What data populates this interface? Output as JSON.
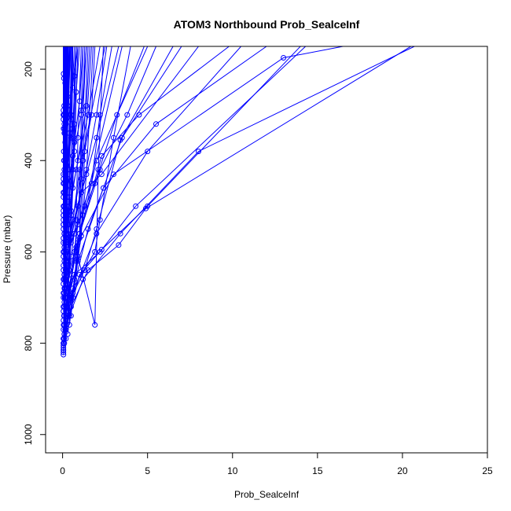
{
  "chart_data": {
    "type": "line",
    "title": "ATOM3 Northbound Prob_SealceInf",
    "xlabel": "Prob_SealceInf",
    "ylabel": "Pressure (mbar)",
    "xlim": [
      -1,
      25
    ],
    "ylim": [
      1040,
      150
    ],
    "y_reversed": true,
    "xticks": [
      0,
      5,
      10,
      15,
      20,
      25
    ],
    "yticks": [
      200,
      400,
      600,
      800,
      1000
    ],
    "color": "#0000ff",
    "grid": false,
    "series": [
      {
        "x": [
          0.05,
          0.1,
          0.3,
          1.3,
          3.5
        ],
        "y": [
          820,
          790,
          700,
          500,
          150
        ]
      },
      {
        "x": [
          0.05,
          0.1,
          0.2,
          0.8,
          2.0,
          5.0
        ],
        "y": [
          815,
          780,
          720,
          600,
          400,
          150
        ]
      },
      {
        "x": [
          0.05,
          0.15,
          0.5,
          1.5,
          3.5,
          7.0
        ],
        "y": [
          810,
          770,
          700,
          550,
          350,
          150
        ]
      },
      {
        "x": [
          0.05,
          0.2,
          0.6,
          2.0,
          5.0,
          10.5
        ],
        "y": [
          805,
          760,
          690,
          560,
          380,
          150
        ]
      },
      {
        "x": [
          0.05,
          0.1,
          0.2,
          0.5,
          1.0,
          2.5
        ],
        "y": [
          800,
          760,
          690,
          560,
          420,
          150
        ]
      },
      {
        "x": [
          0.05,
          0.1,
          0.3,
          0.9,
          3.0,
          13.0,
          16.5
        ],
        "y": [
          825,
          760,
          690,
          580,
          430,
          175,
          150
        ]
      },
      {
        "x": [
          0.1,
          0.3,
          1.0,
          2.3,
          5.0,
          14.0
        ],
        "y": [
          800,
          750,
          650,
          595,
          500,
          150
        ]
      },
      {
        "x": [
          0.05,
          0.4,
          1.2,
          3.4,
          8.0,
          20.7
        ],
        "y": [
          790,
          740,
          660,
          560,
          380,
          150
        ]
      },
      {
        "x": [
          0.1,
          0.5,
          1.5,
          3.3,
          4.9,
          20.5
        ],
        "y": [
          780,
          720,
          640,
          585,
          505,
          150
        ]
      },
      {
        "x": [
          0.05,
          0.2,
          0.7,
          2.2,
          4.3,
          14.3
        ],
        "y": [
          770,
          720,
          650,
          600,
          500,
          150
        ]
      },
      {
        "x": [
          0.1,
          0.3,
          0.9,
          2.4,
          5.5,
          12.0
        ],
        "y": [
          760,
          700,
          620,
          460,
          320,
          150
        ]
      },
      {
        "x": [
          0.05,
          0.5,
          1.3,
          2.0,
          3.4,
          6.5
        ],
        "y": [
          750,
          700,
          640,
          550,
          355,
          150
        ]
      },
      {
        "x": [
          0.1,
          0.6,
          1.9,
          2.2,
          3.0,
          4.0
        ],
        "y": [
          740,
          680,
          600,
          530,
          350,
          150
        ]
      },
      {
        "x": [
          0.05,
          0.3,
          0.8,
          2.3,
          4.5,
          9.8
        ],
        "y": [
          730,
          670,
          590,
          390,
          300,
          150
        ]
      },
      {
        "x": [
          0.05,
          0.2,
          0.5,
          1.1,
          2.3,
          8.0
        ],
        "y": [
          720,
          660,
          570,
          470,
          430,
          150
        ]
      },
      {
        "x": [
          0.1,
          0.4,
          1.0,
          2.2,
          3.8,
          5.5
        ],
        "y": [
          710,
          640,
          560,
          420,
          300,
          150
        ]
      },
      {
        "x": [
          0.05,
          0.2,
          0.7,
          1.9,
          3.2,
          4.8
        ],
        "y": [
          700,
          620,
          560,
          450,
          300,
          150
        ]
      },
      {
        "x": [
          0.05,
          0.3,
          0.9,
          2.0,
          3.3
        ],
        "y": [
          690,
          600,
          500,
          350,
          150
        ]
      },
      {
        "x": [
          0.1,
          0.5,
          1.7,
          2.2,
          2.9
        ],
        "y": [
          680,
          580,
          450,
          300,
          150
        ]
      },
      {
        "x": [
          0.05,
          0.4,
          1.4,
          2.0,
          2.6
        ],
        "y": [
          670,
          570,
          420,
          300,
          150
        ]
      },
      {
        "x": [
          0.05,
          0.2,
          0.8,
          1.5,
          2.2
        ],
        "y": [
          660,
          560,
          420,
          300,
          150
        ]
      },
      {
        "x": [
          0.1,
          0.6,
          1.2,
          1.7,
          1.9
        ],
        "y": [
          650,
          530,
          400,
          300,
          150
        ]
      },
      {
        "x": [
          0.05,
          0.3,
          0.9,
          1.4,
          1.6
        ],
        "y": [
          640,
          520,
          400,
          280,
          150
        ]
      },
      {
        "x": [
          0.05,
          0.1,
          0.6,
          1.1,
          1.4
        ],
        "y": [
          630,
          500,
          390,
          300,
          150
        ]
      },
      {
        "x": [
          0.1,
          0.4,
          0.7,
          1.0,
          1.2
        ],
        "y": [
          620,
          480,
          360,
          270,
          150
        ]
      },
      {
        "x": [
          0.05,
          0.1,
          0.5,
          0.8,
          1.0
        ],
        "y": [
          610,
          470,
          350,
          250,
          150
        ]
      },
      {
        "x": [
          0.05,
          0.2,
          0.4,
          0.6,
          0.8
        ],
        "y": [
          600,
          460,
          340,
          240,
          150
        ]
      },
      {
        "x": [
          0.1,
          0.3,
          0.5,
          0.7
        ],
        "y": [
          590,
          420,
          300,
          150
        ]
      },
      {
        "x": [
          0.05,
          0.1,
          0.3,
          0.5
        ],
        "y": [
          580,
          400,
          280,
          150
        ]
      },
      {
        "x": [
          0.05,
          0.2,
          0.3,
          0.45
        ],
        "y": [
          570,
          380,
          260,
          150
        ]
      },
      {
        "x": [
          0.1,
          0.15,
          0.25,
          0.35
        ],
        "y": [
          560,
          360,
          250,
          150
        ]
      },
      {
        "x": [
          0.05,
          0.1,
          0.2,
          0.3
        ],
        "y": [
          550,
          340,
          240,
          150
        ]
      },
      {
        "x": [
          0.05,
          0.1,
          0.15,
          0.2
        ],
        "y": [
          540,
          320,
          230,
          150
        ]
      },
      {
        "x": [
          0.05,
          0.06,
          0.08,
          0.1
        ],
        "y": [
          530,
          300,
          220,
          150
        ]
      },
      {
        "x": [
          0.05,
          0.05,
          0.06,
          0.07
        ],
        "y": [
          520,
          310,
          210,
          150
        ]
      },
      {
        "x": [
          0.05,
          0.05,
          0.05
        ],
        "y": [
          510,
          300,
          150
        ]
      },
      {
        "x": [
          0.2,
          0.4,
          0.7,
          1.1,
          1.3
        ],
        "y": [
          790,
          700,
          600,
          440,
          150
        ]
      },
      {
        "x": [
          0.3,
          0.6,
          1.0,
          1.2,
          1.5
        ],
        "y": [
          780,
          690,
          570,
          400,
          150
        ]
      },
      {
        "x": [
          0.2,
          0.7,
          1.1,
          1.3,
          1.7
        ],
        "y": [
          770,
          660,
          565,
          380,
          150
        ]
      },
      {
        "x": [
          0.4,
          0.9,
          1.9,
          2.1,
          2.4
        ],
        "y": [
          760,
          610,
          760,
          420,
          150
        ]
      },
      {
        "x": [
          0.5,
          0.8,
          1.0,
          1.1,
          1.2
        ],
        "y": [
          740,
          620,
          560,
          290,
          150
        ]
      },
      {
        "x": [
          0.3,
          0.7,
          0.9,
          1.2,
          1.4
        ],
        "y": [
          730,
          600,
          540,
          290,
          150
        ]
      },
      {
        "x": [
          0.2,
          0.5,
          0.8,
          0.9,
          1.1
        ],
        "y": [
          720,
          610,
          530,
          350,
          150
        ]
      },
      {
        "x": [
          0.6,
          0.9,
          1.2,
          1.4,
          1.8
        ],
        "y": [
          700,
          620,
          520,
          430,
          150
        ]
      },
      {
        "x": [
          0.1,
          0.4,
          0.6,
          0.7,
          0.9
        ],
        "y": [
          690,
          540,
          420,
          215,
          150
        ]
      },
      {
        "x": [
          0.3,
          0.5,
          0.7,
          0.9
        ],
        "y": [
          680,
          510,
          380,
          150
        ]
      },
      {
        "x": [
          0.2,
          0.4,
          0.6,
          0.8
        ],
        "y": [
          670,
          500,
          330,
          150
        ]
      },
      {
        "x": [
          0.1,
          0.3,
          0.4,
          0.6
        ],
        "y": [
          660,
          480,
          300,
          150
        ]
      },
      {
        "x": [
          0.4,
          0.6,
          0.7,
          0.8
        ],
        "y": [
          650,
          460,
          320,
          150
        ]
      },
      {
        "x": [
          0.2,
          0.3,
          0.5,
          0.6
        ],
        "y": [
          640,
          440,
          310,
          150
        ]
      },
      {
        "x": [
          0.3,
          0.4,
          0.5,
          0.55
        ],
        "y": [
          620,
          420,
          300,
          150
        ]
      },
      {
        "x": [
          0.1,
          0.2,
          0.35,
          0.45
        ],
        "y": [
          600,
          400,
          290,
          150
        ]
      },
      {
        "x": [
          0.15,
          0.25,
          0.3,
          0.4
        ],
        "y": [
          580,
          410,
          305,
          150
        ]
      },
      {
        "x": [
          0.1,
          0.15,
          0.2,
          0.3
        ],
        "y": [
          560,
          430,
          320,
          150
        ]
      },
      {
        "x": [
          0.05,
          0.1,
          0.15,
          0.25
        ],
        "y": [
          540,
          450,
          340,
          150
        ]
      },
      {
        "x": [
          0.05,
          0.1,
          0.12,
          0.18
        ],
        "y": [
          520,
          420,
          330,
          150
        ]
      },
      {
        "x": [
          0.05,
          0.08,
          0.1,
          0.14
        ],
        "y": [
          500,
          400,
          300,
          150
        ]
      },
      {
        "x": [
          0.05,
          0.07,
          0.09,
          0.11
        ],
        "y": [
          480,
          380,
          280,
          150
        ]
      },
      {
        "x": [
          0.05,
          0.06,
          0.08
        ],
        "y": [
          470,
          330,
          150
        ]
      },
      {
        "x": [
          0.05,
          0.06,
          0.07
        ],
        "y": [
          450,
          300,
          150
        ]
      },
      {
        "x": [
          0.05,
          0.05,
          0.06
        ],
        "y": [
          440,
          290,
          150
        ]
      },
      {
        "x": [
          0.05,
          0.05
        ],
        "y": [
          430,
          150
        ]
      },
      {
        "x": [
          0.06,
          0.06
        ],
        "y": [
          760,
          150
        ]
      },
      {
        "x": [
          0.08,
          0.08
        ],
        "y": [
          740,
          150
        ]
      },
      {
        "x": [
          0.1,
          0.1
        ],
        "y": [
          720,
          150
        ]
      },
      {
        "x": [
          0.12,
          0.12
        ],
        "y": [
          700,
          150
        ]
      },
      {
        "x": [
          0.14,
          0.14
        ],
        "y": [
          680,
          150
        ]
      },
      {
        "x": [
          0.16,
          0.16
        ],
        "y": [
          660,
          150
        ]
      },
      {
        "x": [
          0.18,
          0.18
        ],
        "y": [
          640,
          150
        ]
      },
      {
        "x": [
          0.2,
          0.2
        ],
        "y": [
          620,
          150
        ]
      },
      {
        "x": [
          0.22,
          0.22
        ],
        "y": [
          600,
          150
        ]
      },
      {
        "x": [
          0.25,
          0.25
        ],
        "y": [
          580,
          150
        ]
      },
      {
        "x": [
          0.28,
          0.28
        ],
        "y": [
          560,
          150
        ]
      },
      {
        "x": [
          0.3,
          0.3
        ],
        "y": [
          540,
          150
        ]
      },
      {
        "x": [
          0.05,
          0.3,
          0.5,
          0.6
        ],
        "y": [
          815,
          730,
          520,
          150
        ]
      },
      {
        "x": [
          0.05,
          0.1,
          0.4,
          0.5
        ],
        "y": [
          800,
          650,
          480,
          150
        ]
      },
      {
        "x": [
          0.05,
          0.15,
          0.25,
          0.35
        ],
        "y": [
          790,
          700,
          500,
          150
        ]
      }
    ]
  }
}
